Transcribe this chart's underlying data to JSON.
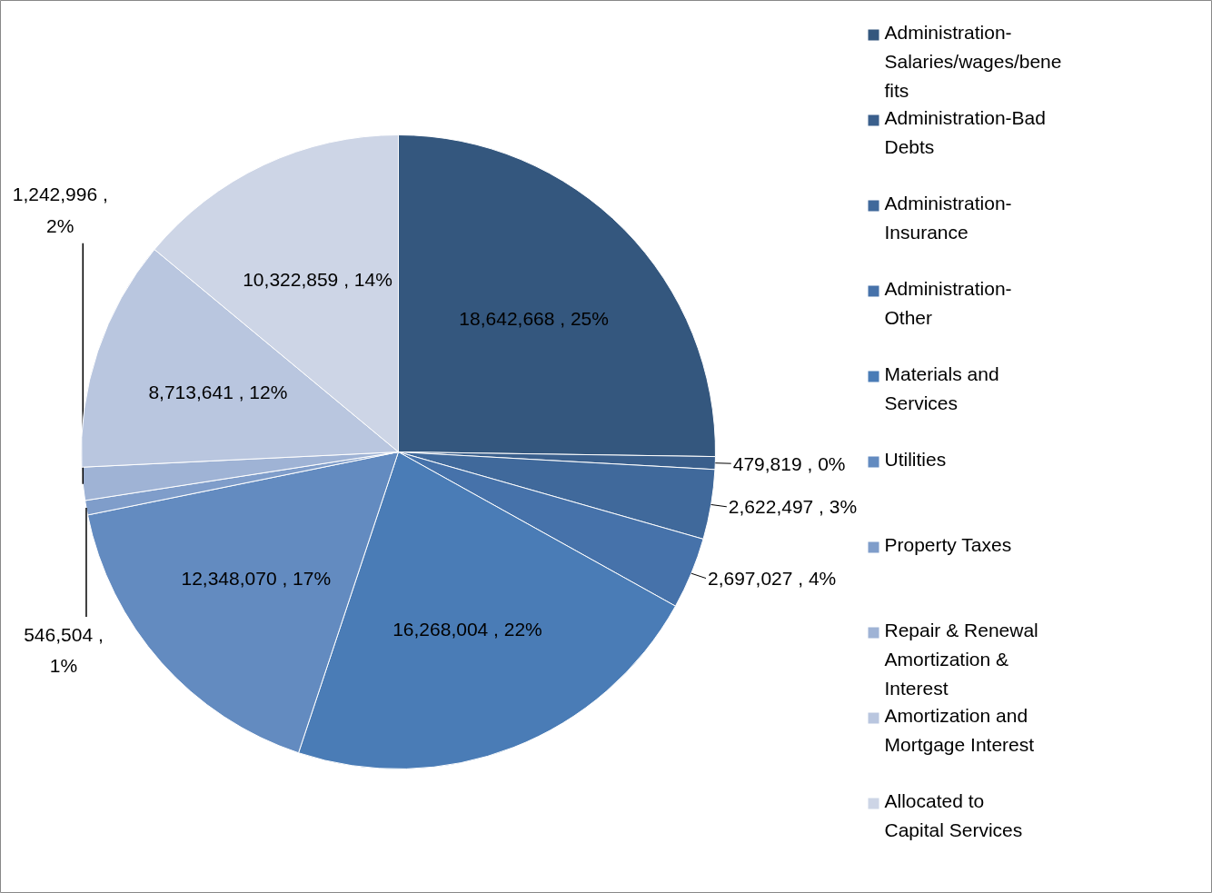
{
  "chart_data": {
    "type": "pie",
    "categories": [
      "Administration-Salaries/wages/benefits",
      "Administration-Bad Debts",
      "Administration-Insurance",
      "Administration-Other",
      "Materials and Services",
      "Utilities",
      "Property Taxes",
      "Repair & Renewal Amortization & Interest",
      "Amortization and Mortgage Interest",
      "Allocated to Capital Services"
    ],
    "values": [
      18642668,
      479819,
      2622497,
      2697027,
      16268004,
      12348070,
      546504,
      1242996,
      8713641,
      10322859
    ],
    "value_labels": [
      "18,642,668 , 25%",
      "479,819 , 0%",
      "2,622,497 , 3%",
      "2,697,027 , 4%",
      "16,268,004 , 22%",
      "12,348,070 , 17%",
      "546,504 , 1%",
      "1,242,996 , 2%",
      "8,713,641 , 12%",
      "10,322,859 , 14%"
    ],
    "colors": [
      "#34577e",
      "#3a5f8c",
      "#40699b",
      "#4672aa",
      "#4a7cb6",
      "#638bc0",
      "#7f9dca",
      "#9fb3d5",
      "#b9c6df",
      "#cdd5e6"
    ],
    "legend": "right"
  }
}
